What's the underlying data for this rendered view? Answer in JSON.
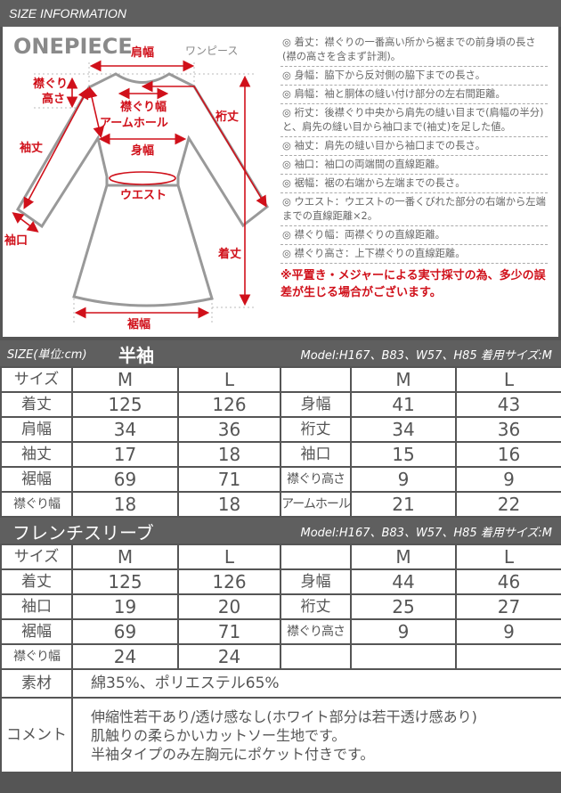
{
  "header": {
    "title": "SIZE INFORMATION"
  },
  "diagram": {
    "brand": "ONEPIECE",
    "brand_sub": "ワンピース",
    "labels": {
      "shoulder": "肩幅",
      "neck_h1": "襟ぐり",
      "neck_h2": "高さ",
      "neck_w": "襟ぐり幅",
      "armhole": "アームホール",
      "body": "身幅",
      "sleeve": "袖丈",
      "cuff": "袖口",
      "yuki": "裄丈",
      "length": "着丈",
      "waist": "ウエスト",
      "hem": "裾幅"
    },
    "descriptions": [
      {
        "key": "◎ 着丈：",
        "value": "襟ぐりの一番高い所から裾までの前身頃の長さ(襟の高さを含まず計測)。"
      },
      {
        "key": "◎ 身幅：",
        "value": "脇下から反対側の脇下までの長さ。"
      },
      {
        "key": "◎ 肩幅：",
        "value": "袖と胴体の縫い付け部分の左右間距離。"
      },
      {
        "key": "◎ 裄丈：",
        "value": "後襟ぐり中央から肩先の縫い目まで(肩幅の半分)と、肩先の縫い目から袖口まで(袖丈)を足した値。"
      },
      {
        "key": "◎ 袖丈：",
        "value": "肩先の縫い目から袖口までの長さ。"
      },
      {
        "key": "◎ 袖口：",
        "value": "袖口の両端間の直線距離。"
      },
      {
        "key": "◎ 裾幅：",
        "value": "裾の右端から左端までの長さ。"
      },
      {
        "key": "◎ ウエスト：",
        "value": "ウエストの一番くびれた部分の右端から左端までの直線距離×2。"
      },
      {
        "key": "◎ 襟ぐり幅：",
        "value": "両襟ぐりの直線距離。"
      },
      {
        "key": "◎ 襟ぐり高さ：",
        "value": "上下襟ぐりの直線距離。"
      }
    ],
    "note": "※平置き・メジャーによる実寸採寸の為、多少の誤差が生じる場合がございます。",
    "colors": {
      "accent": "#d0101a",
      "outline": "#999999"
    }
  },
  "table1": {
    "title_prefix": "SIZE(単位:cm)",
    "title": "半袖",
    "model": "Model:H167、B83、W57、H85 着用サイズ:M",
    "header": [
      "サイズ",
      "M",
      "L",
      "",
      "M",
      "L"
    ],
    "rows": [
      [
        "着丈",
        "125",
        "126",
        "身幅",
        "41",
        "43"
      ],
      [
        "肩幅",
        "34",
        "36",
        "裄丈",
        "34",
        "36"
      ],
      [
        "袖丈",
        "17",
        "18",
        "袖口",
        "15",
        "16"
      ],
      [
        "裾幅",
        "69",
        "71",
        "襟ぐり高さ",
        "9",
        "9"
      ],
      [
        "襟ぐり幅",
        "18",
        "18",
        "アームホール",
        "21",
        "22"
      ]
    ]
  },
  "table2": {
    "title": "フレンチスリーブ",
    "model": "Model:H167、B83、W57、H85 着用サイズ:M",
    "header": [
      "サイズ",
      "M",
      "L",
      "",
      "M",
      "L"
    ],
    "rows": [
      [
        "着丈",
        "125",
        "126",
        "身幅",
        "44",
        "46"
      ],
      [
        "袖口",
        "19",
        "20",
        "裄丈",
        "25",
        "27"
      ],
      [
        "裾幅",
        "69",
        "71",
        "襟ぐり高さ",
        "9",
        "9"
      ],
      [
        "襟ぐり幅",
        "24",
        "24",
        "",
        "",
        ""
      ]
    ],
    "material_label": "素材",
    "material": "綿35%、ポリエステル65%",
    "comment_label": "コメント",
    "comments": [
      "伸縮性若干あり/透け感なし(ホワイト部分は若干透け感あり)",
      "肌触りの柔らかいカットソー生地です。",
      "半袖タイプのみ左胸元にポケット付きです。"
    ]
  }
}
